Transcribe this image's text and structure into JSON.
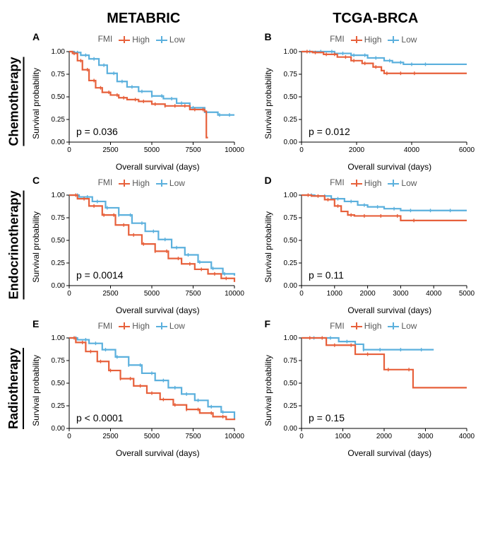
{
  "columns": [
    {
      "key": "metabric",
      "title": "METABRIC"
    },
    {
      "key": "tcga",
      "title": "TCGA-BRCA"
    }
  ],
  "rows": [
    {
      "key": "chemo",
      "title": "Chemotherapy"
    },
    {
      "key": "endo",
      "title": "Endocrinotherapy"
    },
    {
      "key": "radio",
      "title": "Radiotherapy"
    }
  ],
  "legend": {
    "title": "FMI",
    "items": [
      {
        "key": "high",
        "label": "High",
        "color": "#e7603b"
      },
      {
        "key": "low",
        "label": "Low",
        "color": "#5bb0dd"
      }
    ]
  },
  "axis": {
    "xlabel": "Overall survival (days)",
    "ylabel": "Survival probability",
    "y": {
      "min": 0,
      "max": 1,
      "ticks": [
        0.0,
        0.25,
        0.5,
        0.75,
        1.0
      ]
    }
  },
  "style": {
    "background": "#ffffff",
    "axis_color": "#000000",
    "tick_len": 4,
    "font_tick": 10,
    "font_label": 12,
    "font_pval": 14,
    "font_colheader": 20,
    "font_rowheader": 18,
    "font_panel_letter": 14,
    "linewidth_curve": 2.2,
    "censor_tick_len": 5
  },
  "panels": {
    "A": {
      "letter": "A",
      "pvalue": "p = 0.036",
      "x": {
        "min": 0,
        "max": 10000,
        "ticks": [
          0,
          2500,
          5000,
          7500,
          10000
        ]
      },
      "series": {
        "high": {
          "color": "#e7603b",
          "points": [
            [
              0,
              1.0
            ],
            [
              200,
              0.98
            ],
            [
              500,
              0.9
            ],
            [
              800,
              0.8
            ],
            [
              1200,
              0.68
            ],
            [
              1600,
              0.6
            ],
            [
              2000,
              0.55
            ],
            [
              2500,
              0.52
            ],
            [
              3000,
              0.49
            ],
            [
              3500,
              0.47
            ],
            [
              4200,
              0.45
            ],
            [
              5000,
              0.42
            ],
            [
              5800,
              0.4
            ],
            [
              6500,
              0.4
            ],
            [
              7300,
              0.36
            ],
            [
              8200,
              0.34
            ],
            [
              8300,
              0.05
            ],
            [
              8400,
              0.05
            ]
          ],
          "censors": [
            300,
            700,
            1100,
            1500,
            1900,
            2400,
            2900,
            3300,
            4000,
            4500,
            5200,
            5800,
            6400,
            7000,
            7600,
            8100
          ]
        },
        "low": {
          "color": "#5bb0dd",
          "points": [
            [
              0,
              1.0
            ],
            [
              300,
              0.99
            ],
            [
              700,
              0.96
            ],
            [
              1200,
              0.92
            ],
            [
              1800,
              0.85
            ],
            [
              2300,
              0.76
            ],
            [
              2900,
              0.67
            ],
            [
              3500,
              0.61
            ],
            [
              4200,
              0.56
            ],
            [
              5000,
              0.51
            ],
            [
              5700,
              0.48
            ],
            [
              6500,
              0.43
            ],
            [
              7300,
              0.38
            ],
            [
              8200,
              0.33
            ],
            [
              9000,
              0.3
            ],
            [
              10000,
              0.3
            ]
          ],
          "censors": [
            500,
            1000,
            1500,
            2100,
            2700,
            3200,
            3800,
            4400,
            5000,
            5600,
            6200,
            6800,
            7500,
            8300,
            9100,
            9700
          ]
        }
      }
    },
    "B": {
      "letter": "B",
      "pvalue": "p = 0.012",
      "x": {
        "min": 0,
        "max": 6000,
        "ticks": [
          0,
          2000,
          4000,
          6000
        ]
      },
      "series": {
        "high": {
          "color": "#e7603b",
          "points": [
            [
              0,
              1.0
            ],
            [
              400,
              0.99
            ],
            [
              800,
              0.97
            ],
            [
              1300,
              0.94
            ],
            [
              1800,
              0.9
            ],
            [
              2200,
              0.87
            ],
            [
              2600,
              0.83
            ],
            [
              2900,
              0.79
            ],
            [
              3000,
              0.76
            ],
            [
              3500,
              0.76
            ],
            [
              4200,
              0.76
            ],
            [
              6000,
              0.76
            ]
          ],
          "censors": [
            200,
            500,
            900,
            1200,
            1600,
            1900,
            2300,
            2700,
            3100,
            3600,
            4100
          ]
        },
        "low": {
          "color": "#5bb0dd",
          "points": [
            [
              0,
              1.0
            ],
            [
              600,
              1.0
            ],
            [
              1200,
              0.98
            ],
            [
              1800,
              0.96
            ],
            [
              2400,
              0.93
            ],
            [
              3000,
              0.9
            ],
            [
              3300,
              0.88
            ],
            [
              3700,
              0.86
            ],
            [
              4200,
              0.86
            ],
            [
              5000,
              0.86
            ],
            [
              6000,
              0.86
            ]
          ],
          "censors": [
            300,
            700,
            1100,
            1500,
            1900,
            2300,
            2700,
            3200,
            3600,
            4000,
            4500
          ]
        }
      }
    },
    "C": {
      "letter": "C",
      "pvalue": "p = 0.0014",
      "x": {
        "min": 0,
        "max": 10000,
        "ticks": [
          0,
          2500,
          5000,
          7500,
          10000
        ]
      },
      "series": {
        "high": {
          "color": "#e7603b",
          "points": [
            [
              0,
              1.0
            ],
            [
              500,
              0.96
            ],
            [
              1200,
              0.88
            ],
            [
              2000,
              0.78
            ],
            [
              2800,
              0.67
            ],
            [
              3600,
              0.56
            ],
            [
              4400,
              0.46
            ],
            [
              5200,
              0.38
            ],
            [
              6000,
              0.3
            ],
            [
              6800,
              0.24
            ],
            [
              7600,
              0.18
            ],
            [
              8400,
              0.13
            ],
            [
              9200,
              0.08
            ],
            [
              10000,
              0.04
            ]
          ],
          "censors": [
            400,
            900,
            1500,
            2100,
            2700,
            3300,
            3900,
            4500,
            5200,
            5900,
            6600,
            7300,
            8000,
            8800,
            9500
          ]
        },
        "low": {
          "color": "#5bb0dd",
          "points": [
            [
              0,
              1.0
            ],
            [
              600,
              0.98
            ],
            [
              1400,
              0.93
            ],
            [
              2200,
              0.86
            ],
            [
              3000,
              0.78
            ],
            [
              3800,
              0.69
            ],
            [
              4600,
              0.6
            ],
            [
              5400,
              0.51
            ],
            [
              6200,
              0.42
            ],
            [
              7000,
              0.34
            ],
            [
              7800,
              0.26
            ],
            [
              8600,
              0.19
            ],
            [
              9300,
              0.13
            ],
            [
              10000,
              0.11
            ]
          ],
          "censors": [
            500,
            1100,
            1700,
            2300,
            3000,
            3700,
            4400,
            5100,
            5800,
            6500,
            7200,
            7900,
            8700,
            9400
          ]
        }
      }
    },
    "D": {
      "letter": "D",
      "pvalue": "p = 0.11",
      "x": {
        "min": 0,
        "max": 5000,
        "ticks": [
          0,
          1000,
          2000,
          3000,
          4000,
          5000
        ]
      },
      "series": {
        "high": {
          "color": "#e7603b",
          "points": [
            [
              0,
              1.0
            ],
            [
              300,
              0.99
            ],
            [
              700,
              0.95
            ],
            [
              1000,
              0.88
            ],
            [
              1200,
              0.82
            ],
            [
              1400,
              0.78
            ],
            [
              1600,
              0.77
            ],
            [
              2000,
              0.77
            ],
            [
              2800,
              0.77
            ],
            [
              3000,
              0.72
            ],
            [
              3600,
              0.72
            ],
            [
              5000,
              0.72
            ]
          ],
          "censors": [
            200,
            500,
            800,
            1100,
            1500,
            1900,
            2400,
            2900,
            3400
          ]
        },
        "low": {
          "color": "#5bb0dd",
          "points": [
            [
              0,
              1.0
            ],
            [
              400,
              0.99
            ],
            [
              900,
              0.96
            ],
            [
              1300,
              0.93
            ],
            [
              1700,
              0.89
            ],
            [
              2000,
              0.87
            ],
            [
              2500,
              0.85
            ],
            [
              3000,
              0.83
            ],
            [
              3600,
              0.83
            ],
            [
              4400,
              0.83
            ],
            [
              5000,
              0.83
            ]
          ],
          "censors": [
            300,
            700,
            1100,
            1500,
            1900,
            2300,
            2800,
            3300,
            3900,
            4500
          ]
        }
      }
    },
    "E": {
      "letter": "E",
      "pvalue": "p < 0.0001",
      "x": {
        "min": 0,
        "max": 10000,
        "ticks": [
          0,
          2500,
          5000,
          7500,
          10000
        ]
      },
      "series": {
        "high": {
          "color": "#e7603b",
          "points": [
            [
              0,
              1.0
            ],
            [
              400,
              0.95
            ],
            [
              1000,
              0.85
            ],
            [
              1700,
              0.74
            ],
            [
              2400,
              0.64
            ],
            [
              3100,
              0.55
            ],
            [
              3900,
              0.47
            ],
            [
              4700,
              0.39
            ],
            [
              5500,
              0.32
            ],
            [
              6300,
              0.26
            ],
            [
              7100,
              0.21
            ],
            [
              7900,
              0.17
            ],
            [
              8700,
              0.13
            ],
            [
              9500,
              0.1
            ],
            [
              10000,
              0.11
            ]
          ],
          "censors": [
            300,
            800,
            1300,
            1900,
            2500,
            3100,
            3700,
            4300,
            5000,
            5700,
            6400,
            7100,
            7800,
            8600,
            9300
          ]
        },
        "low": {
          "color": "#5bb0dd",
          "points": [
            [
              0,
              1.0
            ],
            [
              500,
              0.98
            ],
            [
              1200,
              0.94
            ],
            [
              2000,
              0.87
            ],
            [
              2800,
              0.79
            ],
            [
              3600,
              0.7
            ],
            [
              4400,
              0.61
            ],
            [
              5200,
              0.53
            ],
            [
              6000,
              0.45
            ],
            [
              6800,
              0.38
            ],
            [
              7600,
              0.31
            ],
            [
              8400,
              0.24
            ],
            [
              9200,
              0.18
            ],
            [
              10000,
              0.1
            ]
          ],
          "censors": [
            400,
            1000,
            1600,
            2200,
            2900,
            3600,
            4300,
            5000,
            5700,
            6400,
            7100,
            7800,
            8600,
            9300
          ]
        }
      }
    },
    "F": {
      "letter": "F",
      "pvalue": "p = 0.15",
      "x": {
        "min": 0,
        "max": 4000,
        "ticks": [
          0,
          1000,
          2000,
          3000,
          4000
        ]
      },
      "series": {
        "high": {
          "color": "#e7603b",
          "points": [
            [
              0,
              1.0
            ],
            [
              300,
              1.0
            ],
            [
              600,
              0.92
            ],
            [
              900,
              0.92
            ],
            [
              1300,
              0.82
            ],
            [
              1700,
              0.82
            ],
            [
              2000,
              0.65
            ],
            [
              2500,
              0.65
            ],
            [
              2700,
              0.45
            ],
            [
              3300,
              0.45
            ],
            [
              4000,
              0.45
            ]
          ],
          "censors": [
            200,
            500,
            800,
            1200,
            1600,
            2100,
            2600
          ]
        },
        "low": {
          "color": "#5bb0dd",
          "points": [
            [
              0,
              1.0
            ],
            [
              400,
              1.0
            ],
            [
              900,
              0.96
            ],
            [
              1300,
              0.93
            ],
            [
              1500,
              0.87
            ],
            [
              2000,
              0.87
            ],
            [
              2600,
              0.87
            ],
            [
              3200,
              0.87
            ]
          ],
          "censors": [
            300,
            700,
            1100,
            1500,
            1900,
            2400,
            2900
          ]
        }
      }
    }
  }
}
